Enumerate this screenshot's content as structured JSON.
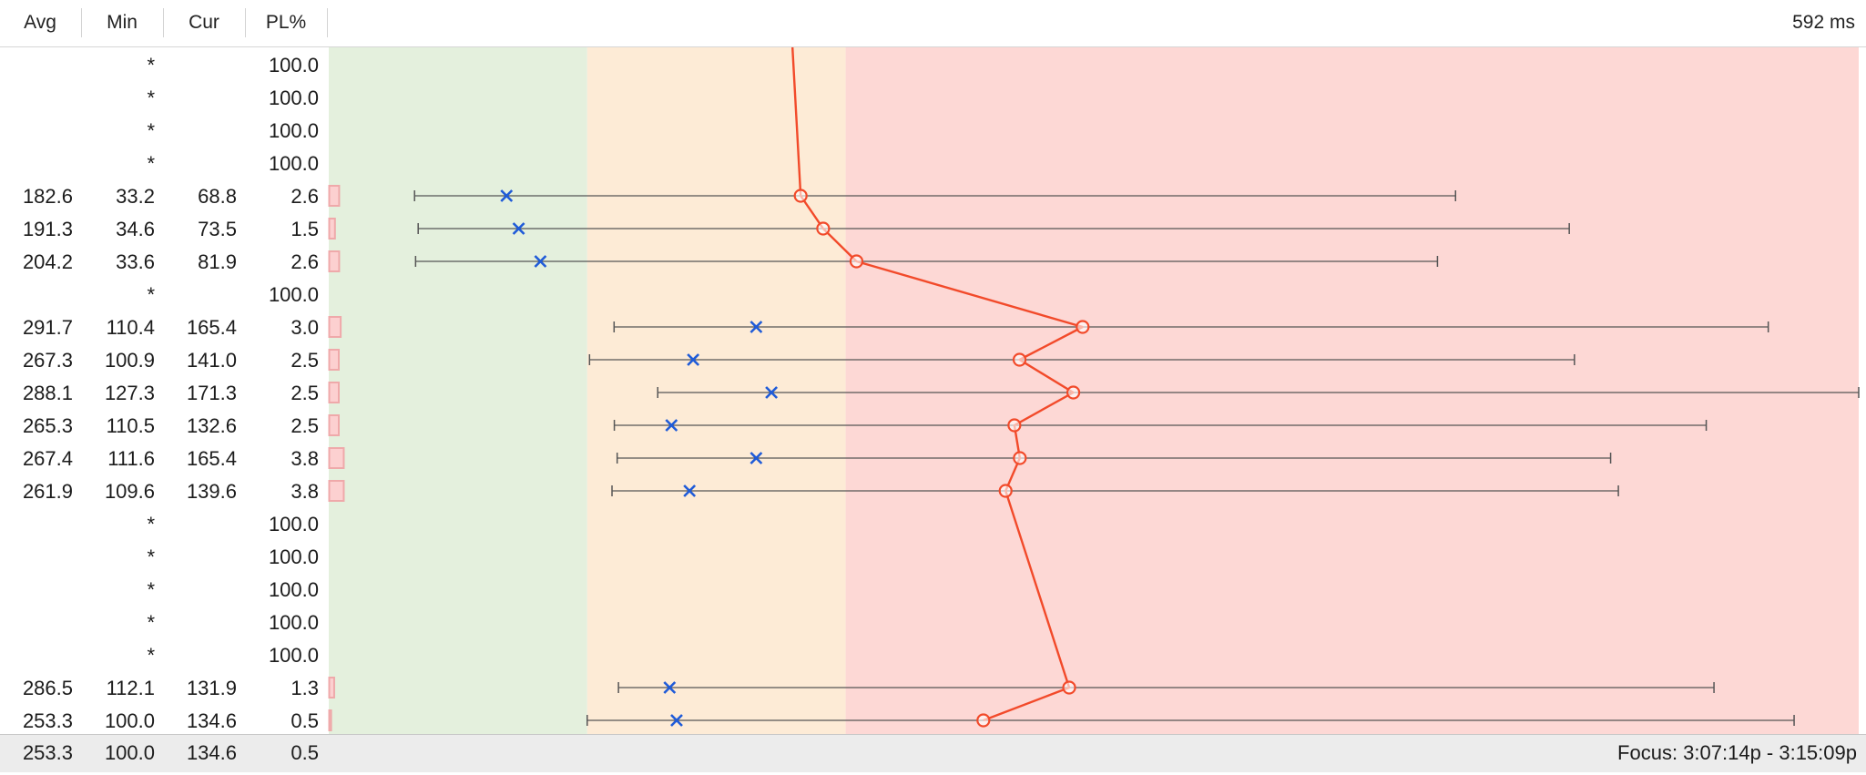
{
  "header": {
    "columns": [
      "Avg",
      "Min",
      "Cur",
      "PL%"
    ],
    "scale_label": "592 ms"
  },
  "colors": {
    "zone_good": "#e4f0dd",
    "zone_warn": "#fdebd6",
    "zone_bad": "#fdd8d5",
    "loss_bar_fill": "#fcd0d0",
    "loss_bar_stroke": "#efa9aa",
    "line": "#f24a2a",
    "avg_marker": "#1f5bd8",
    "range_line": "#555555"
  },
  "chart_data": {
    "type": "line",
    "x_unit": "ms",
    "x_max_ms": 592,
    "zones_ms": [
      {
        "name": "good",
        "from": 0,
        "to": 100
      },
      {
        "name": "warn",
        "from": 100,
        "to": 200
      },
      {
        "name": "bad",
        "from": 200,
        "to": 592
      }
    ],
    "packet_loss_scale_pct": 50,
    "hops": [
      {
        "avg": null,
        "min": null,
        "cur": null,
        "pl": 100.0,
        "min_label": "*",
        "pl_label": "100.0"
      },
      {
        "avg": null,
        "min": null,
        "cur": null,
        "pl": 100.0,
        "min_label": "*",
        "pl_label": "100.0"
      },
      {
        "avg": null,
        "min": null,
        "cur": null,
        "pl": 100.0,
        "min_label": "*",
        "pl_label": "100.0"
      },
      {
        "avg": null,
        "min": null,
        "cur": null,
        "pl": 100.0,
        "min_label": "*",
        "pl_label": "100.0"
      },
      {
        "avg": 182.6,
        "min": 33.2,
        "cur": 68.8,
        "max": 436,
        "pl": 2.6,
        "avg_label": "182.6",
        "min_label": "33.2",
        "cur_label": "68.8",
        "pl_label": "2.6"
      },
      {
        "avg": 191.3,
        "min": 34.6,
        "cur": 73.5,
        "max": 480,
        "pl": 1.5,
        "avg_label": "191.3",
        "min_label": "34.6",
        "cur_label": "73.5",
        "pl_label": "1.5"
      },
      {
        "avg": 204.2,
        "min": 33.6,
        "cur": 81.9,
        "max": 429,
        "pl": 2.6,
        "avg_label": "204.2",
        "min_label": "33.6",
        "cur_label": "81.9",
        "pl_label": "2.6"
      },
      {
        "avg": null,
        "min": null,
        "cur": null,
        "pl": 100.0,
        "min_label": "*",
        "pl_label": "100.0"
      },
      {
        "avg": 291.7,
        "min": 110.4,
        "cur": 165.4,
        "max": 557,
        "pl": 3.0,
        "avg_label": "291.7",
        "min_label": "110.4",
        "cur_label": "165.4",
        "pl_label": "3.0"
      },
      {
        "avg": 267.3,
        "min": 100.9,
        "cur": 141.0,
        "max": 482,
        "pl": 2.5,
        "avg_label": "267.3",
        "min_label": "100.9",
        "cur_label": "141.0",
        "pl_label": "2.5"
      },
      {
        "avg": 288.1,
        "min": 127.3,
        "cur": 171.3,
        "max": 592,
        "pl": 2.5,
        "avg_label": "288.1",
        "min_label": "127.3",
        "cur_label": "171.3",
        "pl_label": "2.5"
      },
      {
        "avg": 265.3,
        "min": 110.5,
        "cur": 132.6,
        "max": 533,
        "pl": 2.5,
        "avg_label": "265.3",
        "min_label": "110.5",
        "cur_label": "132.6",
        "pl_label": "2.5"
      },
      {
        "avg": 267.4,
        "min": 111.6,
        "cur": 165.4,
        "max": 496,
        "pl": 3.8,
        "avg_label": "267.4",
        "min_label": "111.6",
        "cur_label": "165.4",
        "pl_label": "3.8"
      },
      {
        "avg": 261.9,
        "min": 109.6,
        "cur": 139.6,
        "max": 499,
        "pl": 3.8,
        "avg_label": "261.9",
        "min_label": "109.6",
        "cur_label": "139.6",
        "pl_label": "3.8"
      },
      {
        "avg": null,
        "min": null,
        "cur": null,
        "pl": 100.0,
        "min_label": "*",
        "pl_label": "100.0"
      },
      {
        "avg": null,
        "min": null,
        "cur": null,
        "pl": 100.0,
        "min_label": "*",
        "pl_label": "100.0"
      },
      {
        "avg": null,
        "min": null,
        "cur": null,
        "pl": 100.0,
        "min_label": "*",
        "pl_label": "100.0"
      },
      {
        "avg": null,
        "min": null,
        "cur": null,
        "pl": 100.0,
        "min_label": "*",
        "pl_label": "100.0"
      },
      {
        "avg": null,
        "min": null,
        "cur": null,
        "pl": 100.0,
        "min_label": "*",
        "pl_label": "100.0"
      },
      {
        "avg": 286.5,
        "min": 112.1,
        "cur": 131.9,
        "max": 536,
        "pl": 1.3,
        "avg_label": "286.5",
        "min_label": "112.1",
        "cur_label": "131.9",
        "pl_label": "1.3"
      },
      {
        "avg": 253.3,
        "min": 100.0,
        "cur": 134.6,
        "max": 567,
        "pl": 0.5,
        "avg_label": "253.3",
        "min_label": "100.0",
        "cur_label": "134.6",
        "pl_label": "0.5"
      }
    ]
  },
  "footer": {
    "avg": "253.3",
    "min": "100.0",
    "cur": "134.6",
    "pl": "0.5",
    "focus": "Focus: 3:07:14p - 3:15:09p"
  }
}
